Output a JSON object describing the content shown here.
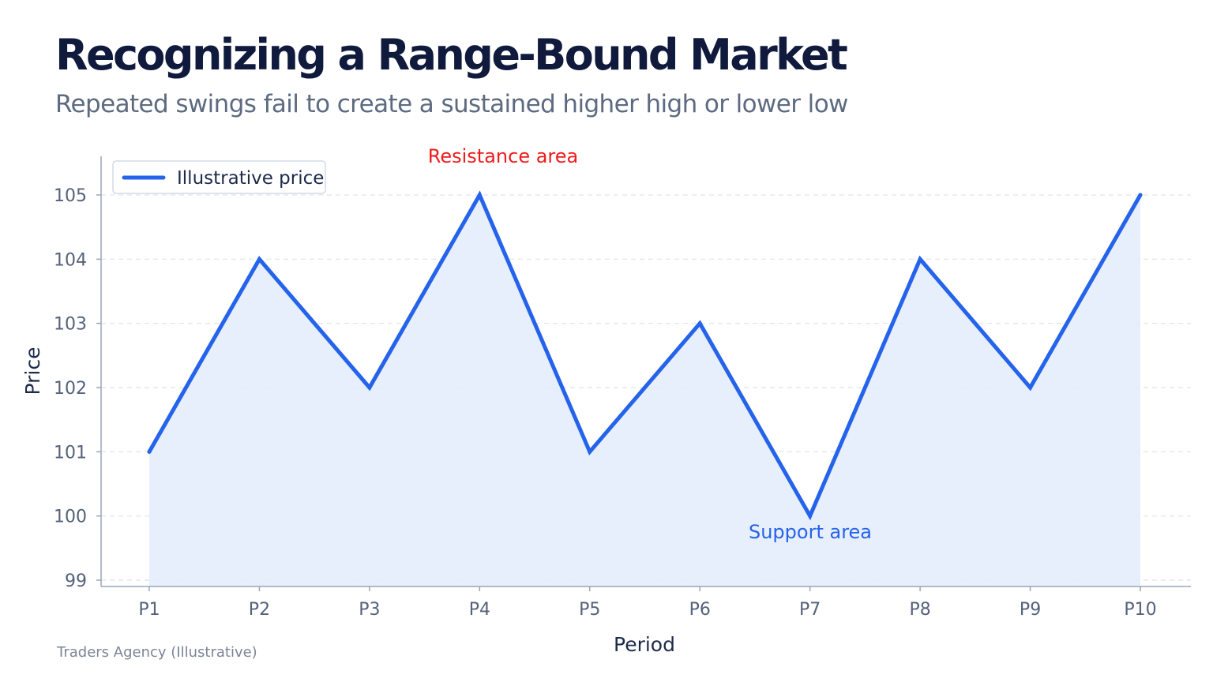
{
  "header": {
    "title": "Recognizing a Range-Bound Market",
    "subtitle": "Repeated swings fail to create a sustained higher high or lower low"
  },
  "footer": {
    "source": "Traders Agency (Illustrative)"
  },
  "colors": {
    "line": "#2563eb",
    "fill": "#e3edfb",
    "resistance_label": "#ee1c1c",
    "support_label": "#2563eb",
    "grid": "#dde3ec",
    "axis": "#9aa5b8"
  },
  "chart_data": {
    "type": "area",
    "title": "Recognizing a Range-Bound Market",
    "subtitle": "Repeated swings fail to create a sustained higher high or lower low",
    "xlabel": "Period",
    "ylabel": "Price",
    "categories": [
      "P1",
      "P2",
      "P3",
      "P4",
      "P5",
      "P6",
      "P7",
      "P8",
      "P9",
      "P10"
    ],
    "series": [
      {
        "name": "Illustrative price",
        "values": [
          101,
          104,
          102,
          105,
          101,
          103,
          100,
          104,
          102,
          105
        ]
      }
    ],
    "ylim": [
      99,
      105.6
    ],
    "yticks": [
      99,
      100,
      101,
      102,
      103,
      104,
      105
    ],
    "grid": "horizontal, dashed",
    "legend": "top-left",
    "annotations": [
      {
        "text": "Resistance area",
        "x": "P4",
        "y": 105.6,
        "color": "#ee1c1c"
      },
      {
        "text": "Support area",
        "x": "P7",
        "y": 99.75,
        "color": "#2563eb"
      }
    ]
  }
}
